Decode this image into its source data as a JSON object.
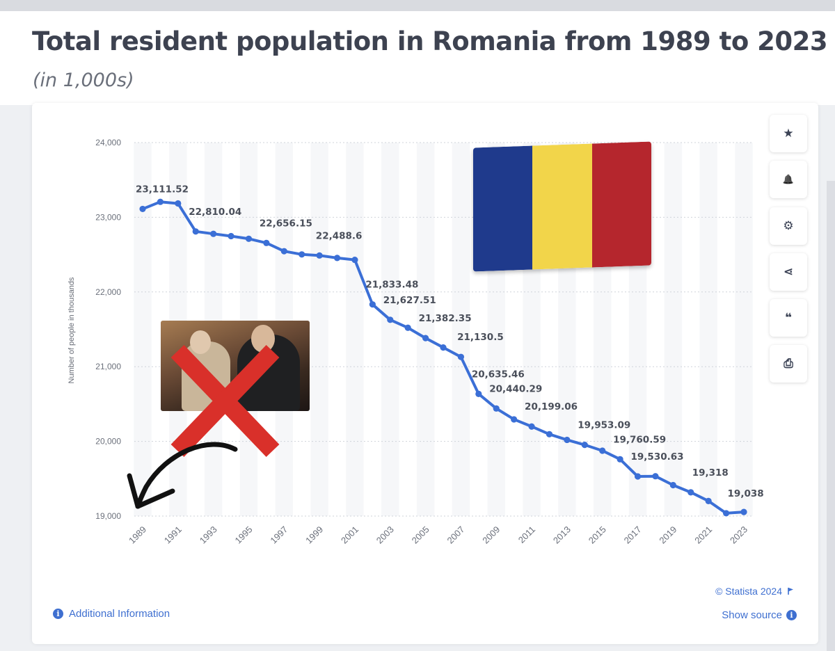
{
  "header": {
    "title": "Total resident population in Romania from 1989 to 2023",
    "subtitle": "(in 1,000s)"
  },
  "chart_data": {
    "type": "line",
    "title": "Total resident population in Romania from 1989 to 2023",
    "subtitle": "(in 1,000s)",
    "xlabel": "",
    "ylabel": "Number of people in thousands",
    "ylim": [
      19000,
      24000
    ],
    "xlim": [
      1989,
      2023
    ],
    "yticks": [
      19000,
      20000,
      21000,
      22000,
      23000,
      24000
    ],
    "ytick_labels": [
      "19,000",
      "20,000",
      "21,000",
      "22,000",
      "23,000",
      "24,000"
    ],
    "xtick_labels": [
      "1989",
      "1991",
      "1993",
      "1995",
      "1997",
      "1999",
      "2001",
      "2003",
      "2005",
      "2007",
      "2009",
      "2011",
      "2013",
      "2015",
      "2017",
      "2019",
      "2021",
      "2023"
    ],
    "grid": true,
    "series": [
      {
        "name": "Resident population",
        "color": "#3b6fd6",
        "x": [
          1989,
          1990,
          1991,
          1992,
          1993,
          1994,
          1995,
          1996,
          1997,
          1998,
          1999,
          2000,
          2001,
          2002,
          2003,
          2004,
          2005,
          2006,
          2007,
          2008,
          2009,
          2010,
          2011,
          2012,
          2013,
          2014,
          2015,
          2016,
          2017,
          2018,
          2019,
          2020,
          2021,
          2022,
          2023
        ],
        "values": [
          23111.52,
          23206.72,
          23185.08,
          22810.04,
          22778.53,
          22748.03,
          22712.39,
          22656.15,
          22545.93,
          22502.8,
          22488.6,
          22455.48,
          22430.46,
          21833.48,
          21627.51,
          21521.14,
          21382.35,
          21257.02,
          21130.5,
          20635.46,
          20440.29,
          20294.68,
          20199.06,
          20095.99,
          20020.07,
          19953.09,
          19875.54,
          19760.59,
          19530.63,
          19533.48,
          19414.46,
          19318,
          19201.66,
          19038,
          19055
        ]
      }
    ],
    "annotations": [
      {
        "x": 1989,
        "y": 23111.52,
        "label": "23,111.52"
      },
      {
        "x": 1992,
        "y": 22810.04,
        "label": "22,810.04"
      },
      {
        "x": 1996,
        "y": 22656.15,
        "label": "22,656.15"
      },
      {
        "x": 1999,
        "y": 22488.6,
        "label": "22,488.6"
      },
      {
        "x": 2002,
        "y": 21833.48,
        "label": "21,833.48"
      },
      {
        "x": 2003,
        "y": 21627.51,
        "label": "21,627.51"
      },
      {
        "x": 2005,
        "y": 21382.35,
        "label": "21,382.35"
      },
      {
        "x": 2007,
        "y": 21130.5,
        "label": "21,130.5"
      },
      {
        "x": 2008,
        "y": 20635.46,
        "label": "20,635.46"
      },
      {
        "x": 2009,
        "y": 20440.29,
        "label": "20,440.29"
      },
      {
        "x": 2011,
        "y": 20199.06,
        "label": "20,199.06"
      },
      {
        "x": 2014,
        "y": 19953.09,
        "label": "19,953.09"
      },
      {
        "x": 2016,
        "y": 19760.59,
        "label": "19,760.59"
      },
      {
        "x": 2017,
        "y": 19530.63,
        "label": "19,530.63"
      },
      {
        "x": 2020,
        "y": 19318,
        "label": "19,318"
      },
      {
        "x": 2022,
        "y": 19038,
        "label": "19,038"
      }
    ]
  },
  "toolbar": {
    "buttons": [
      {
        "name": "favorite-button",
        "icon": "star-icon",
        "glyph": "★"
      },
      {
        "name": "notification-button",
        "icon": "bell-icon",
        "glyph": "🔔"
      },
      {
        "name": "settings-button",
        "icon": "gear-icon",
        "glyph": "⚙"
      },
      {
        "name": "share-button",
        "icon": "share-icon",
        "glyph": "⋖"
      },
      {
        "name": "cite-button",
        "icon": "quote-icon",
        "glyph": "❝"
      },
      {
        "name": "print-button",
        "icon": "printer-icon",
        "glyph": "⎙"
      }
    ]
  },
  "flag": {
    "colors": [
      "#1f3a8c",
      "#f2d54a",
      "#b5262d"
    ]
  },
  "overlay": {
    "photo_icon": "photo-icon",
    "cross_color": "#d9302a",
    "arrow_color": "#111111"
  },
  "footer": {
    "additional_info": "Additional Information",
    "copyright": "© Statista 2024",
    "show_source": "Show source",
    "info_glyph": "i"
  }
}
